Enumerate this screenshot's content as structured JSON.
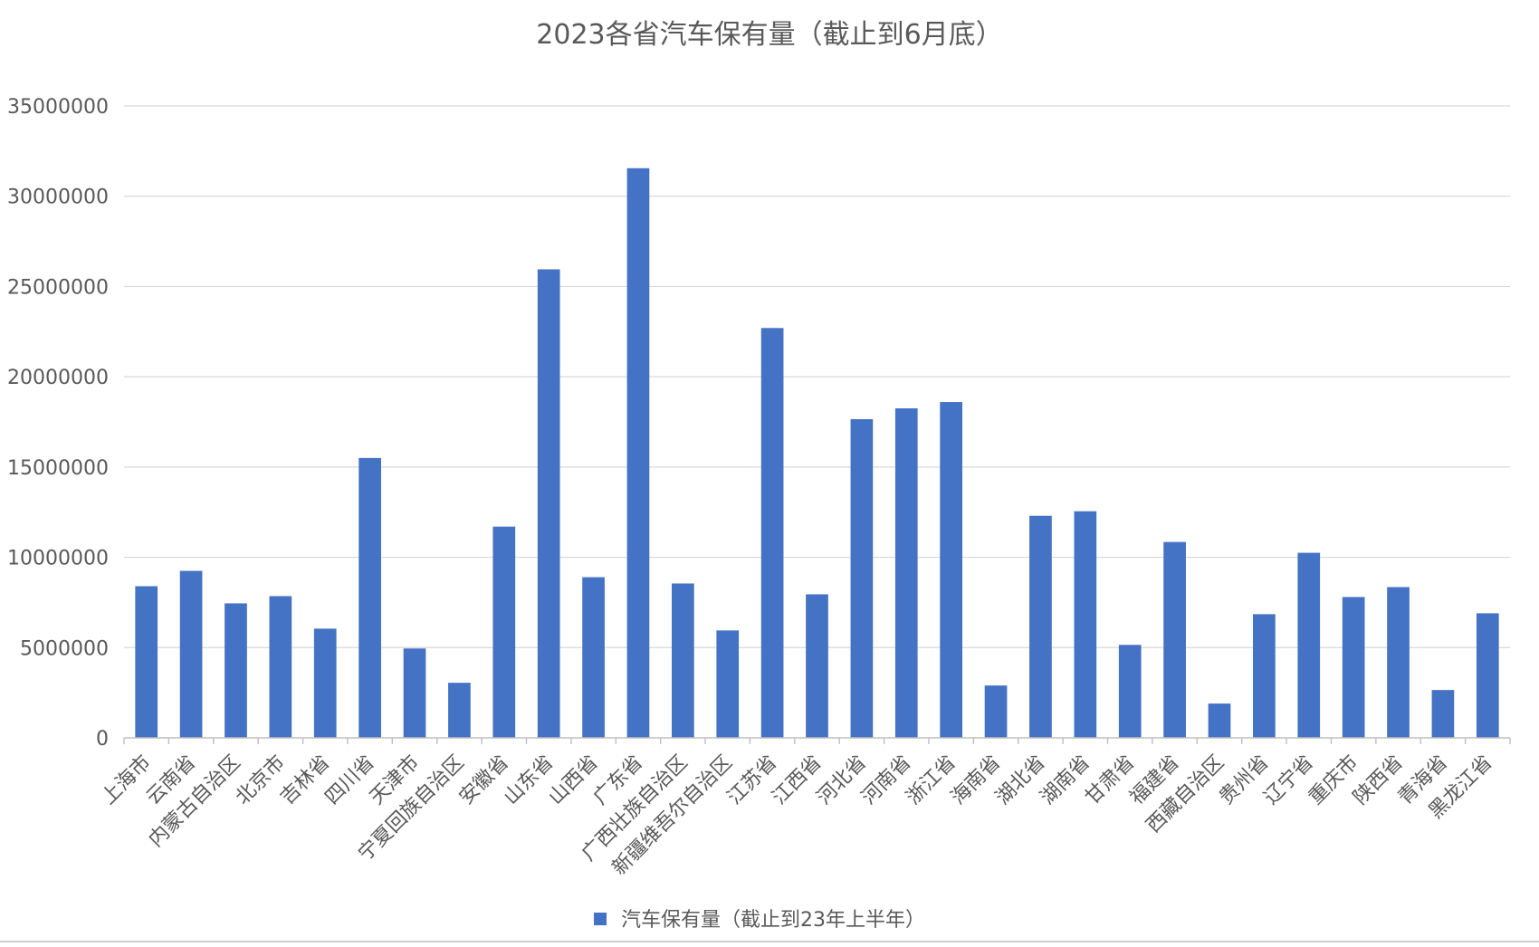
{
  "chart_data": {
    "type": "bar",
    "title": "2023各省汽车保有量（截止到6月底）",
    "categories": [
      "上海市",
      "云南省",
      "内蒙古自治区",
      "北京市",
      "吉林省",
      "四川省",
      "天津市",
      "宁夏回族自治区",
      "安徽省",
      "山东省",
      "山西省",
      "广东省",
      "广西壮族自治区",
      "新疆维吾尔自治区",
      "江苏省",
      "江西省",
      "河北省",
      "河南省",
      "浙江省",
      "海南省",
      "湖北省",
      "湖南省",
      "甘肃省",
      "福建省",
      "西藏自治区",
      "贵州省",
      "辽宁省",
      "重庆市",
      "陕西省",
      "青海省",
      "黑龙江省"
    ],
    "series": [
      {
        "name": "汽车保有量（截止到23年上半年）",
        "color": "#4472c4",
        "values": [
          8400000,
          9250000,
          7450000,
          7850000,
          6050000,
          15500000,
          4950000,
          3050000,
          11700000,
          25950000,
          8900000,
          31550000,
          8550000,
          5950000,
          22700000,
          7950000,
          17650000,
          18250000,
          18600000,
          2900000,
          12300000,
          12550000,
          5150000,
          10850000,
          1900000,
          6850000,
          10250000,
          7800000,
          8350000,
          2650000,
          6900000
        ]
      }
    ],
    "yticks": [
      "0",
      "5000000",
      "10000000",
      "15000000",
      "20000000",
      "25000000",
      "30000000",
      "35000000"
    ],
    "ylim": [
      0,
      35000000
    ],
    "grid": true,
    "legend": "bottom"
  }
}
